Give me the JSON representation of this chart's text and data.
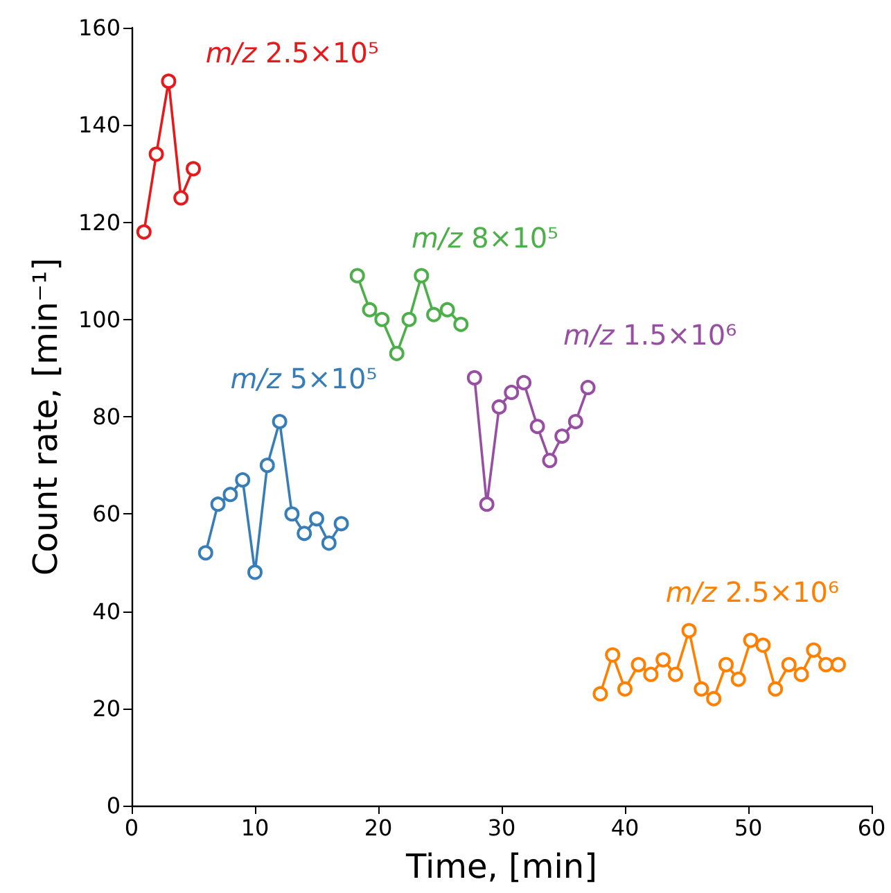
{
  "chart_data": {
    "type": "line",
    "xlabel": "Time, [min]",
    "ylabel": "Count rate, [min⁻¹]",
    "xlim": [
      0,
      60
    ],
    "xticks": [
      0,
      10,
      20,
      30,
      40,
      50,
      60
    ],
    "ylim": [
      0,
      160
    ],
    "yticks": [
      0,
      20,
      40,
      60,
      80,
      100,
      120,
      140,
      160
    ],
    "grid": false,
    "legend": false,
    "marker": "circle",
    "line_style": "solid",
    "series": [
      {
        "name": "m/z 2.5×10⁵",
        "color": "#e41a1c",
        "x": [
          1,
          2,
          3,
          4,
          5
        ],
        "values": [
          118,
          134,
          149,
          125,
          131
        ]
      },
      {
        "name": "m/z 5×10⁵",
        "color": "#377eb8",
        "x": [
          6,
          7,
          8,
          9,
          10,
          11,
          12,
          13,
          14,
          15,
          16,
          17
        ],
        "values": [
          52,
          62,
          64,
          67,
          48,
          70,
          79,
          60,
          56,
          59,
          54,
          58
        ]
      },
      {
        "name": "m/z 8×10⁵",
        "color": "#4daf4a",
        "x": [
          18.3,
          19.3,
          20.3,
          21.5,
          22.5,
          23.5,
          24.5,
          25.6,
          26.7
        ],
        "values": [
          109,
          102,
          100,
          93,
          100,
          109,
          101,
          102,
          99
        ]
      },
      {
        "name": "m/z 1.5×10⁶",
        "color": "#984ea3",
        "x": [
          27.8,
          28.8,
          29.8,
          30.8,
          31.8,
          32.9,
          33.9,
          34.9,
          36,
          37
        ],
        "values": [
          88,
          62,
          82,
          85,
          87,
          78,
          71,
          76,
          79,
          86
        ]
      },
      {
        "name": "m/z 2.5×10⁶",
        "color": "#ff7f00",
        "x": [
          38,
          39,
          40,
          41.1,
          42.1,
          43.1,
          44.1,
          45.2,
          46.2,
          47.2,
          48.2,
          49.2,
          50.2,
          51.2,
          52.2,
          53.3,
          54.3,
          55.3,
          56.3,
          57.3
        ],
        "values": [
          23,
          31,
          24,
          29,
          27,
          30,
          27,
          36,
          24,
          22,
          29,
          26,
          34,
          33,
          24,
          29,
          27,
          32,
          29,
          29
        ]
      }
    ]
  }
}
